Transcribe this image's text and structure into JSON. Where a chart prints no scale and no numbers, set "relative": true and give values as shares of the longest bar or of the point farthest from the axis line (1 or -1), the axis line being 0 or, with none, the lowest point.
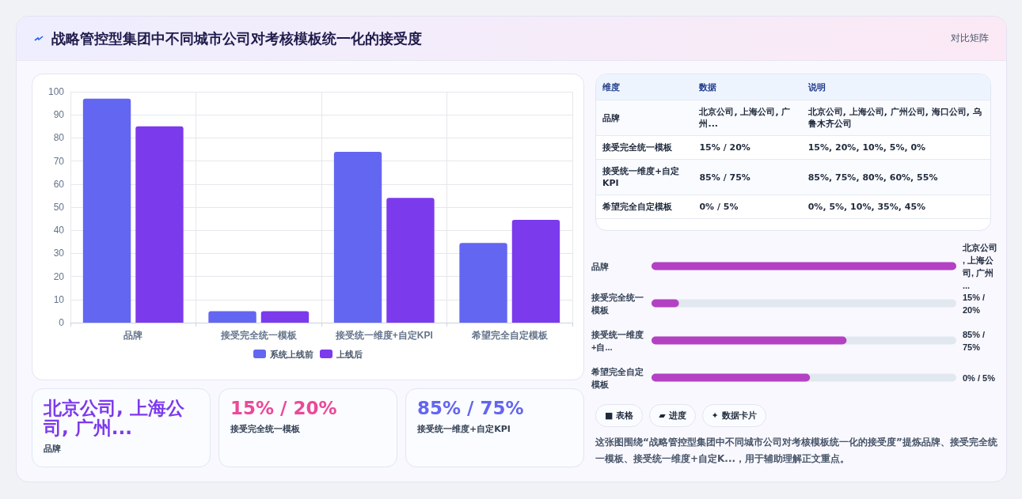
{
  "chart_data": [
    {
      "type": "other",
      "title": "战略管控型集团中不同城市公司对考核模板统一化的接受度",
      "annotations": [
        "对比矩阵"
      ]
    },
    {
      "type": "bar",
      "categories": [
        "品牌",
        "接受完全统一模板",
        "接受统一维度+自定KPI",
        "希望完全自定模板"
      ],
      "series": [
        {
          "name": "系统上线前",
          "color": "#6366f1",
          "values": [
            97,
            5,
            74,
            34.5
          ]
        },
        {
          "name": "上线后",
          "color": "#7c3aed",
          "values": [
            85,
            5,
            54,
            44.5
          ]
        }
      ],
      "ylim": [
        0,
        100
      ],
      "yticks": [
        0,
        10,
        20,
        30,
        40,
        50,
        60,
        70,
        80,
        90,
        100
      ],
      "grid": true,
      "legend": "bottom"
    },
    {
      "type": "other",
      "annotations": [
        "维度",
        "数据",
        "说明",
        "品牌",
        "北京公司, 上海公司, 广州...",
        "北京公司, 上海公司, 广州公司, 海口公司, 乌鲁木齐公司",
        "接受完全统一模板",
        "15% / 20%",
        "15%, 20%, 10%, 5%, 0%",
        "接受统一维度+自定KPI",
        "85% / 75%",
        "85%, 75%, 80%, 60%, 55%",
        "希望完全自定模板",
        "0% / 5%",
        "0%, 5%, 10%, 35%, 45%"
      ]
    },
    {
      "type": "bar",
      "orientation": "horizontal",
      "relative": true,
      "categories": [
        "品牌",
        "接受完全统一模板",
        "接受统一维度+自...",
        "希望完全自定模板"
      ],
      "values": [
        1,
        0.09,
        0.64,
        0.52
      ],
      "annotations": [
        "北京公司, 上海公司, 广州...",
        "15% / 20%",
        "85% / 75%",
        "0% / 5%"
      ],
      "color": "#b441c3"
    },
    {
      "type": "other",
      "annotations": [
        "北京公司, 上海公司, 广州...",
        "品牌",
        "15% / 20%",
        "接受完全统一模板",
        "85% / 75%",
        "接受统一维度+自定KPI"
      ]
    },
    {
      "type": "other",
      "annotations": [
        "■ 表格",
        "▰ 进度",
        "✦ 数据卡片",
        "这张图围绕“战略管控型集团中不同城市公司对考核模板统一化的接受度”提炼品牌、接受完全统一模板、接受统一维度+自定K...，用于辅助理解正文重点。"
      ]
    }
  ]
}
